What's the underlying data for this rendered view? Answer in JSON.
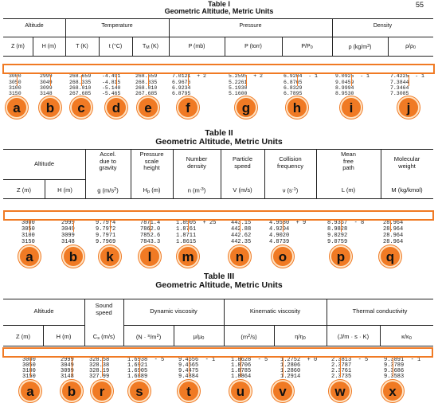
{
  "page_number": "55",
  "t1": {
    "title": "Table I",
    "subtitle": "Geometric Altitude, Metric Units",
    "groups": [
      "Altitude",
      "Temperature",
      "Pressure",
      "Density"
    ],
    "cols": [
      "Z (m)",
      "H (m)",
      "T (K)",
      "t (°C)",
      "T",
      "M",
      "(K)",
      "P (mb)",
      "P (torr)",
      "P/P",
      "0",
      "ρ (kg/m",
      "3",
      ")",
      "ρ/ρ",
      "0"
    ],
    "rows": [
      [
        "3000",
        "2999",
        "268.659",
        "-4.491",
        "268.659",
        "7.0121  + 2",
        "5.2595  + 2",
        "6.9204  - 1",
        "9.0925  - 1",
        "7.4225  - 1"
      ],
      [
        "3050",
        "3049",
        "268.335",
        "-4.815",
        "268.335",
        "6.9676",
        "5.2261",
        "6.8765",
        "9.0459",
        "7.3844"
      ],
      [
        "3100",
        "3099",
        "268.010",
        "-5.140",
        "268.010",
        "6.9234",
        "5.1930",
        "6.8329",
        "8.9994",
        "7.3464"
      ],
      [
        "3150",
        "3148",
        "267.685",
        "-5.465",
        "267.685",
        "6.8795",
        "5.1600",
        "6.7895",
        "8.9530",
        "7.3085"
      ]
    ],
    "labels": [
      "a",
      "b",
      "c",
      "d",
      "e",
      "f",
      "g",
      "h",
      "i",
      "j"
    ]
  },
  "t2": {
    "title": "Table II",
    "subtitle": "Geometric Altitude, Metric Units",
    "groups": [
      "Altitude"
    ],
    "head_top": [
      "Accel.",
      "due to",
      "gravity",
      "Pressure",
      "scale",
      "height",
      "Number",
      "density",
      "Particle",
      "speed",
      "Collision",
      "frequency",
      "Mean",
      "free",
      "path",
      "Molecular",
      "weight"
    ],
    "cols": [
      "Z (m)",
      "H (m)",
      "g (m/s",
      "2",
      ")",
      "H",
      "p",
      " (m)",
      "n (m",
      "-3",
      ")",
      "V (m/s)",
      "ν (s",
      "-1",
      ")",
      "L (m)",
      "M (kg/kmol)"
    ],
    "rows": [
      [
        "3000",
        "2999",
        "9.7974",
        "7871.4",
        "1.8905  + 25",
        "443.15",
        "4.9580  + 9",
        "8.9367  - 8",
        "28.964"
      ],
      [
        "3050",
        "3049",
        "9.7972",
        "7862.0",
        "1.8761",
        "442.88",
        "4.9204",
        "8.9828",
        "28.964"
      ],
      [
        "3100",
        "3099",
        "9.7971",
        "7852.6",
        "1.8711",
        "442.62",
        "4.9020",
        "9.0292",
        "28.964"
      ],
      [
        "3150",
        "3148",
        "9.7969",
        "7843.3",
        "1.8615",
        "442.35",
        "4.8739",
        "9.0759",
        "28.964"
      ]
    ],
    "labels": [
      "a",
      "b",
      "k",
      "l",
      "m",
      "n",
      "o",
      "p",
      "q"
    ]
  },
  "t3": {
    "title": "Table III",
    "subtitle": "Geometric Altitude, Metric Units",
    "groups": [
      "Altitude",
      "Sound",
      "speed",
      "Dynamic viscosity",
      "Kinematic viscosity",
      "Thermal conductivity"
    ],
    "cols": [
      "Z (m)",
      "H (m)",
      "C",
      "s",
      " (m/s)",
      "(N · ",
      "s",
      "/m",
      "2",
      ")",
      "μ/μ",
      "0",
      "(m",
      "2",
      "/s)",
      "η/η",
      "0",
      "(J/m",
      " · s · K)",
      "κ/κ",
      "0"
    ],
    "rows": [
      [
        "3000",
        "2999",
        "328.58",
        "1.6938  - 5",
        "9.4656  - 1",
        "1.8628  - 5",
        "1.2752  + 0",
        "2.3813  - 5",
        "9.3891  - 1"
      ],
      [
        "3050",
        "3049",
        "328.38",
        "1.6921",
        "9.4565",
        "1.8706",
        "1.2806",
        "2.3787",
        "9.3789"
      ],
      [
        "3100",
        "3099",
        "328.19",
        "1.6905",
        "9.4475",
        "1.8785",
        "1.2860",
        "2.3761",
        "9.3686"
      ],
      [
        "3150",
        "3148",
        "327.99",
        "1.6889",
        "9.4384",
        "1.8864",
        "1.2914",
        "2.3735",
        "9.3583"
      ]
    ],
    "labels": [
      "a",
      "b",
      "r",
      "s",
      "t",
      "u",
      "v",
      "w",
      "x"
    ]
  },
  "colors": {
    "highlight": "#f07a24",
    "badge_ring": "#ffe3c4",
    "ink": "#111111"
  }
}
